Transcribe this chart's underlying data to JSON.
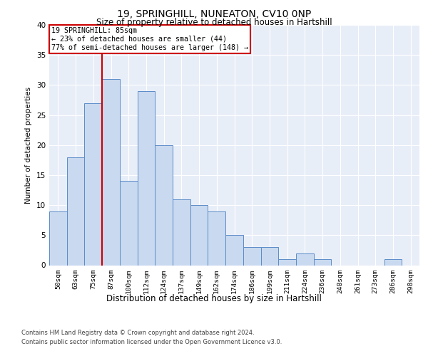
{
  "title1": "19, SPRINGHILL, NUNEATON, CV10 0NP",
  "title2": "Size of property relative to detached houses in Hartshill",
  "xlabel": "Distribution of detached houses by size in Hartshill",
  "ylabel": "Number of detached properties",
  "categories": [
    "50sqm",
    "63sqm",
    "75sqm",
    "87sqm",
    "100sqm",
    "112sqm",
    "124sqm",
    "137sqm",
    "149sqm",
    "162sqm",
    "174sqm",
    "186sqm",
    "199sqm",
    "211sqm",
    "224sqm",
    "236sqm",
    "248sqm",
    "261sqm",
    "273sqm",
    "286sqm",
    "298sqm"
  ],
  "values": [
    9,
    18,
    27,
    31,
    14,
    29,
    20,
    11,
    10,
    9,
    5,
    3,
    3,
    1,
    2,
    1,
    0,
    0,
    0,
    1,
    0
  ],
  "bar_color": "#c9d9ef",
  "bar_edge_color": "#5b8cc8",
  "property_line_x": 2.5,
  "property_line_color": "#cc0000",
  "annotation_box_text": "19 SPRINGHILL: 85sqm\n← 23% of detached houses are smaller (44)\n77% of semi-detached houses are larger (148) →",
  "annotation_box_color": "#cc0000",
  "ylim": [
    0,
    40
  ],
  "yticks": [
    0,
    5,
    10,
    15,
    20,
    25,
    30,
    35,
    40
  ],
  "background_color": "#e8eef8",
  "footer1": "Contains HM Land Registry data © Crown copyright and database right 2024.",
  "footer2": "Contains public sector information licensed under the Open Government Licence v3.0."
}
